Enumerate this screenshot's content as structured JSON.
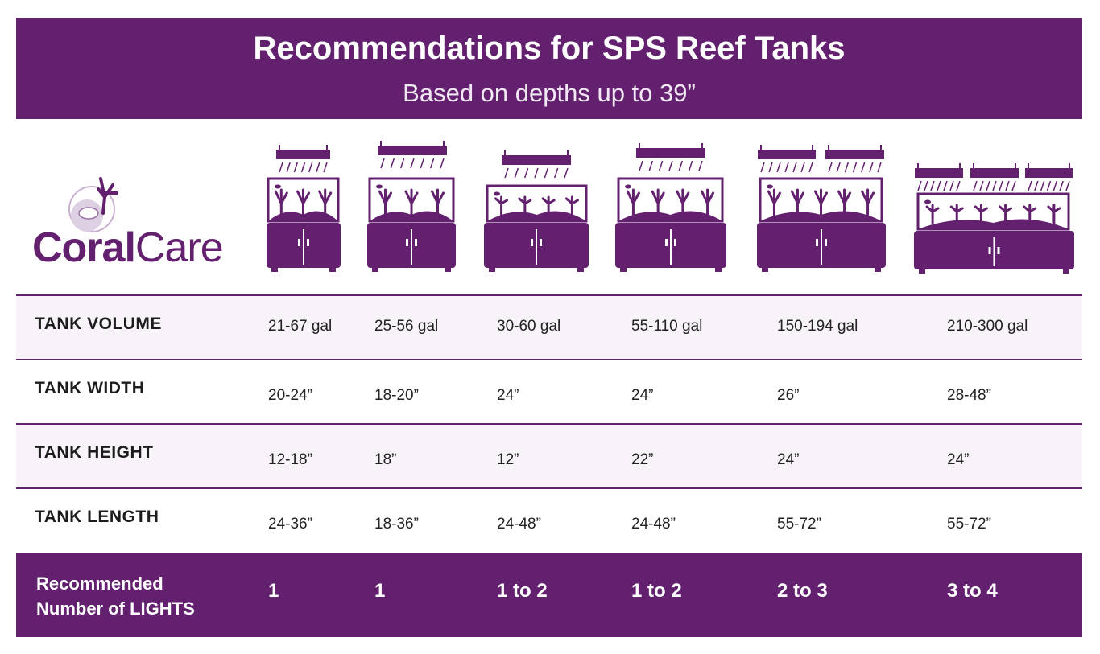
{
  "header": {
    "title": "Recommendations for SPS Reef Tanks",
    "subtitle": "Based on depths up to 39”"
  },
  "logo": {
    "bold": "Coral",
    "regular": "Care"
  },
  "table": {
    "rows": [
      {
        "label": "TANK VOLUME",
        "values": [
          "21-67 gal",
          "25-56 gal",
          "30-60 gal",
          "55-110 gal",
          "150-194 gal",
          "210-300 gal"
        ]
      },
      {
        "label": "TANK WIDTH",
        "values": [
          "20-24”",
          "18-20”",
          "24”",
          "24”",
          "26”",
          "28-48”"
        ]
      },
      {
        "label": "TANK HEIGHT",
        "values": [
          "12-18”",
          "18”",
          "12”",
          "22”",
          "24”",
          "24”"
        ]
      },
      {
        "label": "TANK LENGTH",
        "values": [
          "24-36”",
          "18-36”",
          "24-48”",
          "24-48”",
          "55-72”",
          "55-72”"
        ]
      }
    ],
    "footer": {
      "label_lines": [
        "Recommended",
        "Number of LIGHTS"
      ],
      "values": [
        "1",
        "1",
        "1 to 2",
        "1 to 2",
        "2 to 3",
        "3 to 4"
      ]
    }
  }
}
